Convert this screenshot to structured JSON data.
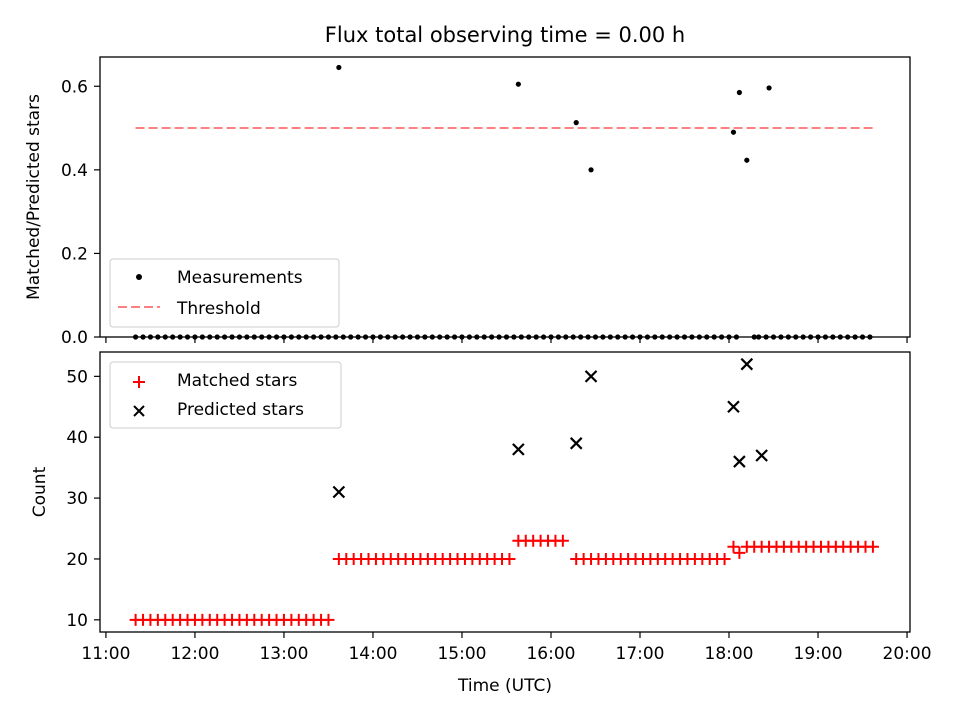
{
  "title": "Flux total observing time = 0.00 h",
  "colors": {
    "measurements": "#000000",
    "threshold": "#ff8080",
    "matched": "#ff0000",
    "predicted": "#000000",
    "axes": "#000000"
  },
  "chart_data": [
    {
      "type": "scatter",
      "panel": "top",
      "title": "Flux total observing time = 0.00 h",
      "xlabel": "",
      "ylabel": "Matched/Predicted stars",
      "xlim": [
        "10:56",
        "20:02"
      ],
      "ylim": [
        0,
        0.67
      ],
      "yticks": [
        0.0,
        0.2,
        0.4,
        0.6
      ],
      "ytick_labels": [
        "0.0",
        "0.2",
        "0.4",
        "0.6"
      ],
      "xticks": [
        "11:00",
        "12:00",
        "13:00",
        "14:00",
        "15:00",
        "16:00",
        "17:00",
        "18:00",
        "19:00",
        "20:00"
      ],
      "grid": false,
      "legend_position": "lower-left",
      "legend": [
        "Measurements",
        "Threshold"
      ],
      "threshold": {
        "name": "Threshold",
        "value": 0.5,
        "x_start": "11:20",
        "x_end": "19:38",
        "style": "dashed"
      },
      "series": [
        {
          "name": "Measurements",
          "marker": "dot",
          "x": [
            "11:20",
            "11:25",
            "11:30",
            "11:35",
            "11:40",
            "11:45",
            "11:50",
            "11:55",
            "12:00",
            "12:05",
            "12:10",
            "12:15",
            "12:20",
            "12:25",
            "12:30",
            "12:35",
            "12:40",
            "12:45",
            "12:50",
            "12:55",
            "13:00",
            "13:05",
            "13:10",
            "13:15",
            "13:20",
            "13:25",
            "13:30",
            "13:35",
            "13:37",
            "13:40",
            "13:45",
            "13:50",
            "13:55",
            "14:00",
            "14:05",
            "14:10",
            "14:15",
            "14:20",
            "14:25",
            "14:30",
            "14:35",
            "14:40",
            "14:45",
            "14:50",
            "14:55",
            "15:00",
            "15:05",
            "15:10",
            "15:15",
            "15:20",
            "15:25",
            "15:30",
            "15:35",
            "15:38",
            "15:40",
            "15:45",
            "15:50",
            "15:55",
            "16:00",
            "16:05",
            "16:10",
            "16:15",
            "16:17",
            "16:20",
            "16:25",
            "16:27",
            "16:30",
            "16:35",
            "16:40",
            "16:45",
            "16:50",
            "16:55",
            "17:00",
            "17:05",
            "17:10",
            "17:15",
            "17:20",
            "17:25",
            "17:30",
            "17:35",
            "17:40",
            "17:45",
            "17:50",
            "17:55",
            "18:00",
            "18:03",
            "18:05",
            "18:07",
            "18:12",
            "18:17",
            "18:20",
            "18:25",
            "18:27",
            "18:30",
            "18:35",
            "18:40",
            "18:45",
            "18:50",
            "18:55",
            "19:00",
            "19:05",
            "19:10",
            "19:15",
            "19:20",
            "19:25",
            "19:30",
            "19:35"
          ],
          "y": [
            0,
            0,
            0,
            0,
            0,
            0,
            0,
            0,
            0,
            0,
            0,
            0,
            0,
            0,
            0,
            0,
            0,
            0,
            0,
            0,
            0,
            0,
            0,
            0,
            0,
            0,
            0,
            0,
            0.645,
            0,
            0,
            0,
            0,
            0,
            0,
            0,
            0,
            0,
            0,
            0,
            0,
            0,
            0,
            0,
            0,
            0,
            0,
            0,
            0,
            0,
            0,
            0,
            0,
            0.605,
            0,
            0,
            0,
            0,
            0,
            0,
            0,
            0,
            0.513,
            0,
            0,
            0.4,
            0,
            0,
            0,
            0,
            0,
            0,
            0,
            0,
            0,
            0,
            0,
            0,
            0,
            0,
            0,
            0,
            0,
            0,
            0,
            0.49,
            0,
            0.585,
            0.423,
            0,
            0,
            0,
            0.596,
            0,
            0,
            0,
            0,
            0,
            0,
            0,
            0,
            0,
            0,
            0,
            0,
            0,
            0
          ]
        }
      ]
    },
    {
      "type": "scatter",
      "panel": "bottom",
      "xlabel": "Time (UTC)",
      "ylabel": "Count",
      "xlim": [
        "10:56",
        "20:02"
      ],
      "ylim": [
        8,
        54
      ],
      "yticks": [
        10,
        20,
        30,
        40,
        50
      ],
      "ytick_labels": [
        "10",
        "20",
        "30",
        "40",
        "50"
      ],
      "xticks": [
        "11:00",
        "12:00",
        "13:00",
        "14:00",
        "15:00",
        "16:00",
        "17:00",
        "18:00",
        "19:00",
        "20:00"
      ],
      "xtick_labels": [
        "11:00",
        "12:00",
        "13:00",
        "14:00",
        "15:00",
        "16:00",
        "17:00",
        "18:00",
        "19:00",
        "20:00"
      ],
      "grid": false,
      "legend_position": "top-left",
      "legend": [
        "Matched stars",
        "Predicted stars"
      ],
      "series": [
        {
          "name": "Matched stars",
          "marker": "plus",
          "segments": [
            {
              "start": "11:20",
              "end": "13:30",
              "step_min": 5,
              "y": 10
            },
            {
              "start": "13:37",
              "end": "15:35",
              "step_min": 5,
              "y": 20
            },
            {
              "start": "15:38",
              "end": "16:12",
              "step_min": 5,
              "y": 23
            },
            {
              "start": "16:17",
              "end": "17:57",
              "step_min": 5,
              "y": 20
            },
            {
              "start": "18:03",
              "end": "18:03",
              "step_min": 5,
              "y": 22
            },
            {
              "start": "18:07",
              "end": "18:07",
              "step_min": 5,
              "y": 21
            },
            {
              "start": "18:12",
              "end": "19:37",
              "step_min": 5,
              "y": 22
            }
          ]
        },
        {
          "name": "Predicted stars",
          "marker": "x",
          "x": [
            "13:37",
            "15:38",
            "16:17",
            "16:27",
            "18:03",
            "18:07",
            "18:12",
            "18:22"
          ],
          "y": [
            31,
            38,
            39,
            50,
            45,
            36,
            52,
            37
          ]
        }
      ]
    }
  ]
}
